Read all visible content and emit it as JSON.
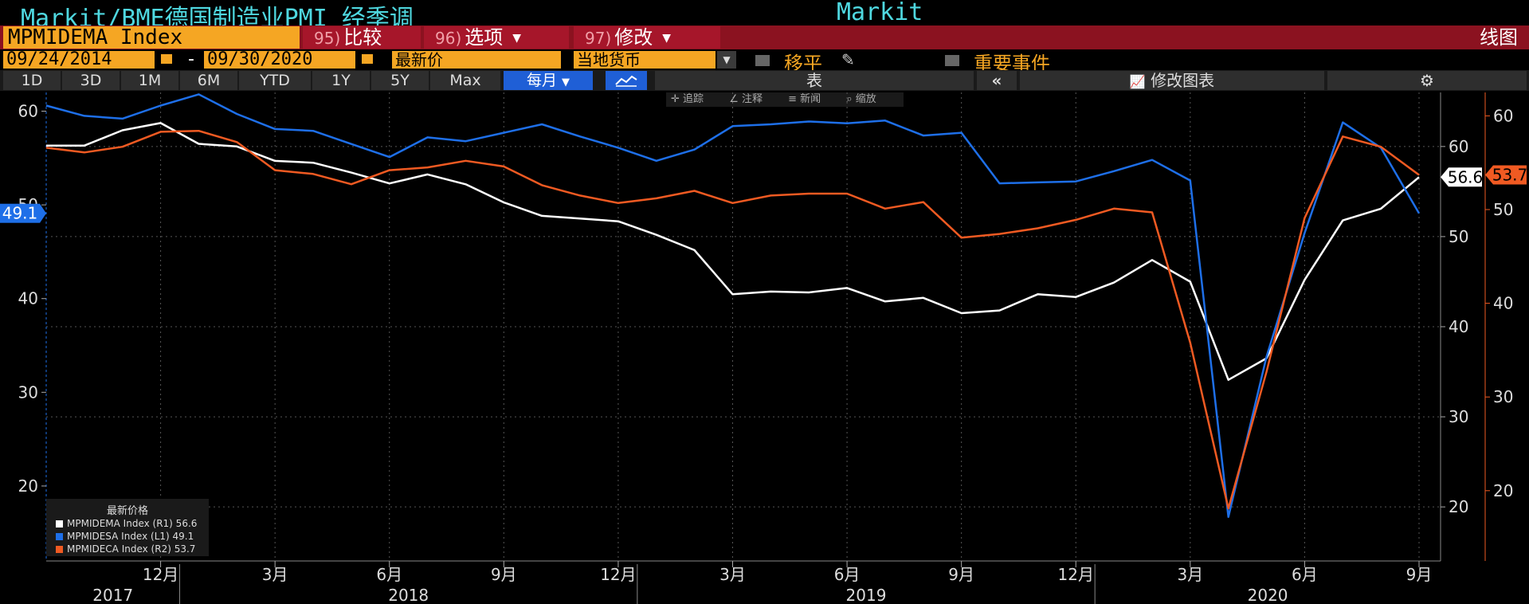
{
  "header": {
    "title": "Markit/BME德国制造业PMI 经季调",
    "source": "Markit"
  },
  "command_bar": {
    "ticker": "MPMIDEMA Index",
    "compare": {
      "num": "95)",
      "label": "比较"
    },
    "options": {
      "num": "96)",
      "label": "选项"
    },
    "edit": {
      "num": "97)",
      "label": "修改"
    },
    "chart_kind": "线图"
  },
  "date_bar": {
    "start_date": "09/24/2014",
    "separator": "-",
    "end_date": "09/30/2020",
    "price_field": "最新价",
    "currency": "当地货币",
    "moving_avg": "移平",
    "key_events": "重要事件"
  },
  "period_bar": {
    "periods": [
      "1D",
      "3D",
      "1M",
      "6M",
      "YTD",
      "1Y",
      "5Y",
      "Max"
    ],
    "frequency": "每月",
    "table_label": "表",
    "edit_chart": "修改图表"
  },
  "mini_toolbar": {
    "track": "追踪",
    "annotate": "注释",
    "news": "新闻",
    "zoom": "缩放"
  },
  "legend": {
    "title": "最新价格",
    "items": [
      "MPMIDEMA Index  (R1) 56.6",
      "MPMIDESA Index  (L1) 49.1",
      "MPMIDECA Index  (R2) 53.7"
    ]
  },
  "colors": {
    "series_white": "#ffffff",
    "series_blue": "#1e6fe8",
    "series_orange": "#f05a22",
    "cyan_title": "#4fd8e0",
    "orange_box": "#f5a623",
    "red_bar": "#8b1220"
  },
  "chart_data": {
    "type": "line",
    "x_month_labels": [
      "12月",
      "3月",
      "6月",
      "9月",
      "12月",
      "3月",
      "6月",
      "9月",
      "12月",
      "3月",
      "6月",
      "9月"
    ],
    "x_year_labels": [
      "2017",
      "2018",
      "2019",
      "2020"
    ],
    "x": [
      "2017-09",
      "2017-10",
      "2017-11",
      "2017-12",
      "2018-01",
      "2018-02",
      "2018-03",
      "2018-04",
      "2018-05",
      "2018-06",
      "2018-07",
      "2018-08",
      "2018-09",
      "2018-10",
      "2018-11",
      "2018-12",
      "2019-01",
      "2019-02",
      "2019-03",
      "2019-04",
      "2019-05",
      "2019-06",
      "2019-07",
      "2019-08",
      "2019-09",
      "2019-10",
      "2019-11",
      "2019-12",
      "2020-01",
      "2020-02",
      "2020-03",
      "2020-04",
      "2020-05",
      "2020-06",
      "2020-07",
      "2020-08",
      "2020-09"
    ],
    "series": [
      {
        "name": "MPMIDEMA Index",
        "axis": "R1",
        "last": "56.6",
        "values": [
          60.1,
          60.1,
          61.8,
          62.6,
          60.3,
          60.0,
          58.4,
          58.2,
          57.1,
          55.9,
          56.9,
          55.8,
          53.8,
          52.3,
          52.0,
          51.7,
          50.2,
          48.5,
          43.6,
          43.9,
          43.8,
          44.3,
          42.8,
          43.2,
          41.5,
          41.8,
          43.6,
          43.3,
          44.9,
          47.4,
          45.0,
          34.1,
          36.5,
          45.2,
          51.8,
          53.1,
          56.6
        ]
      },
      {
        "name": "MPMIDESA Index",
        "axis": "L1",
        "last": "49.1",
        "values": [
          60.6,
          59.5,
          59.2,
          60.6,
          61.8,
          59.7,
          58.1,
          57.9,
          56.5,
          55.1,
          57.2,
          56.8,
          57.7,
          58.6,
          57.3,
          56.1,
          54.7,
          55.9,
          58.4,
          58.6,
          58.9,
          58.7,
          59.0,
          57.4,
          57.7,
          52.3,
          52.4,
          52.5,
          53.6,
          54.8,
          52.6,
          16.7,
          33.8,
          47.0,
          58.8,
          56.1,
          49.1
        ]
      },
      {
        "name": "MPMIDECA Index",
        "axis": "R2",
        "last": "53.7",
        "values": [
          56.6,
          56.1,
          56.7,
          58.3,
          58.4,
          57.2,
          54.2,
          53.8,
          52.7,
          54.2,
          54.5,
          55.2,
          54.6,
          52.6,
          51.5,
          50.7,
          51.2,
          52.0,
          50.7,
          51.5,
          51.7,
          51.7,
          50.1,
          50.8,
          47.0,
          47.4,
          48.0,
          48.9,
          50.1,
          49.7,
          35.8,
          18.1,
          32.7,
          49.1,
          57.8,
          56.7,
          53.7
        ]
      }
    ],
    "left_axis": {
      "ticks": [
        20,
        30,
        40,
        50,
        60
      ],
      "ylim": [
        12,
        62
      ]
    },
    "right_axis_1": {
      "ticks": [
        20,
        30,
        40,
        50,
        60
      ],
      "ylim": [
        14,
        66
      ]
    },
    "right_axis_2": {
      "ticks": [
        20,
        30,
        40,
        50,
        60
      ],
      "ylim": [
        12.5,
        62.5
      ]
    },
    "grid": true,
    "legend_placement": "bottom-left"
  }
}
